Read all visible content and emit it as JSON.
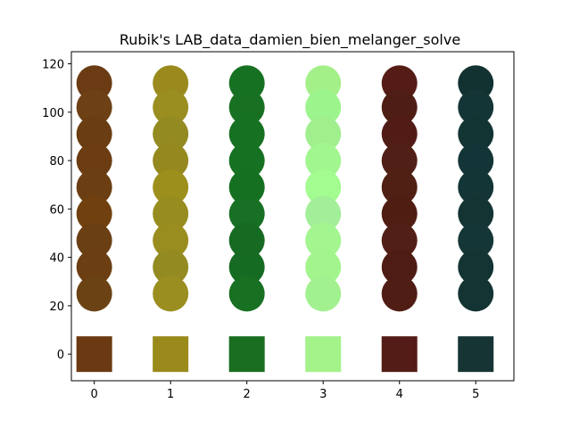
{
  "chart_data": {
    "type": "scatter",
    "title": "Rubik's LAB_data_damien_bien_melanger_solve",
    "xlabel": "",
    "ylabel": "",
    "xlim": [
      -0.3,
      5.5
    ],
    "ylim": [
      -11,
      125
    ],
    "x_ticks": [
      0,
      1,
      2,
      3,
      4,
      5
    ],
    "y_ticks": [
      0,
      20,
      40,
      60,
      80,
      100,
      120
    ],
    "grid": false,
    "legend": "none",
    "circle_y": [
      112,
      102,
      91,
      80,
      69,
      58,
      47,
      36,
      25
    ],
    "square_y": 0,
    "series": [
      {
        "x": 0,
        "square_color": "#6b3a12",
        "colors": [
          "#6b3c14",
          "#6d4016",
          "#6a3d12",
          "#6c3c12",
          "#6b3e13",
          "#70400f",
          "#6b3f14",
          "#6b3e13",
          "#6b4214"
        ]
      },
      {
        "x": 1,
        "square_color": "#9a8a1c",
        "colors": [
          "#9a8a1e",
          "#9a8e20",
          "#938a22",
          "#95881f",
          "#9d8f1b",
          "#978c1f",
          "#9a8d1f",
          "#938a21",
          "#9a8e21"
        ]
      },
      {
        "x": 2,
        "square_color": "#1a6e22",
        "colors": [
          "#177122",
          "#187122",
          "#177122",
          "#167122",
          "#167021",
          "#177023",
          "#176a22",
          "#166b22",
          "#187022"
        ]
      },
      {
        "x": 3,
        "square_color": "#a3f28a",
        "colors": [
          "#a3f088",
          "#9cf58c",
          "#a0ef8c",
          "#a2f690",
          "#a2fc8f",
          "#a3ee98",
          "#a2f58f",
          "#a2f48c",
          "#a2f190"
        ]
      },
      {
        "x": 4,
        "square_color": "#541c16",
        "colors": [
          "#551c16",
          "#4e1e14",
          "#521c16",
          "#501f15",
          "#4f2013",
          "#4f1d12",
          "#521f16",
          "#4f1c14",
          "#4f1d14"
        ]
      },
      {
        "x": 5,
        "square_color": "#163433",
        "colors": [
          "#123231",
          "#143535",
          "#123433",
          "#143537",
          "#133535",
          "#133432",
          "#153636",
          "#133433",
          "#143433"
        ]
      }
    ]
  }
}
